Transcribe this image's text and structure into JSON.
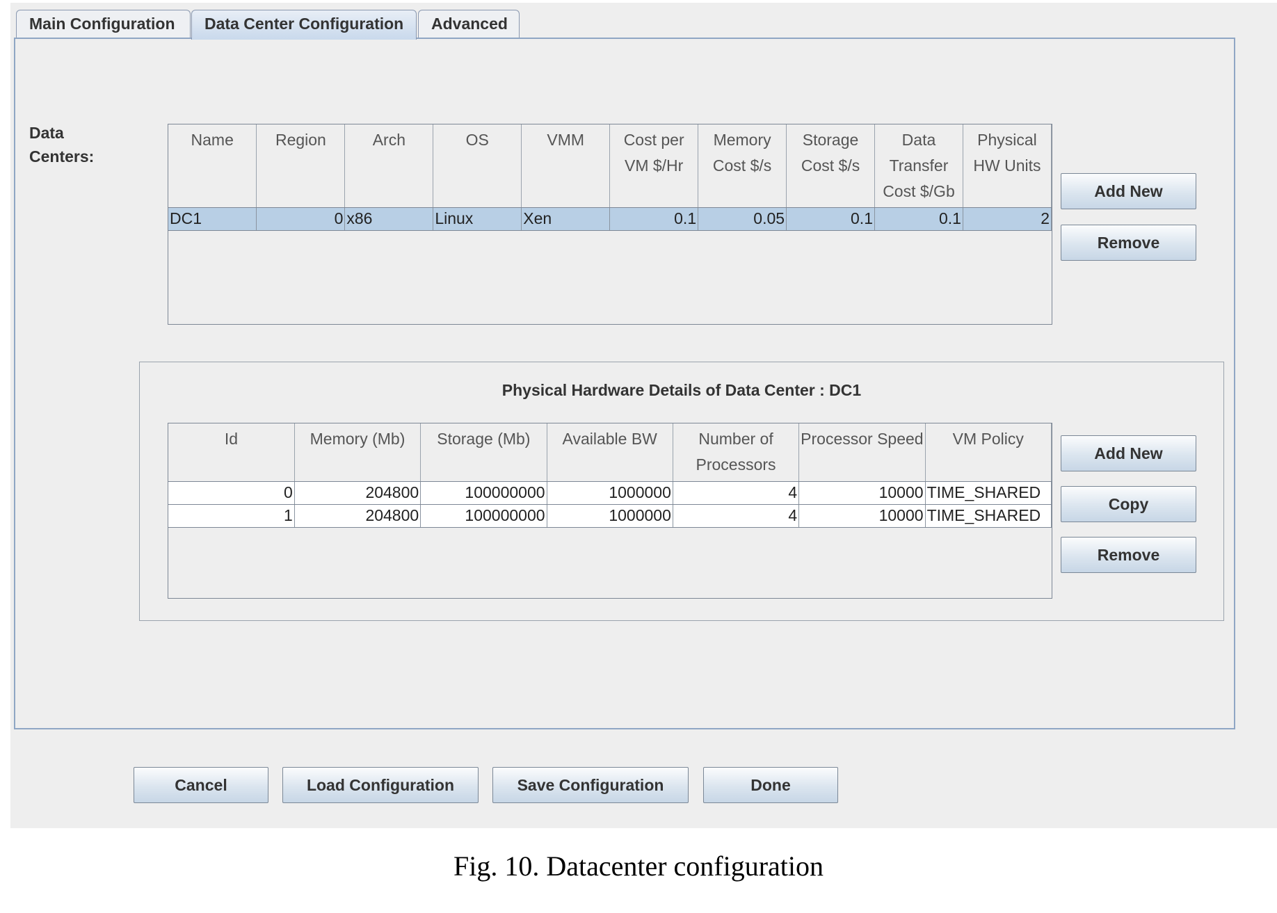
{
  "tabs": [
    {
      "label": "Main Configuration"
    },
    {
      "label": "Data Center Configuration",
      "active": true
    },
    {
      "label": "Advanced"
    }
  ],
  "datacenters": {
    "label": "Data Centers:",
    "columns": [
      "Name",
      "Region",
      "Arch",
      "OS",
      "VMM",
      "Cost per VM $/Hr",
      "Memory Cost $/s",
      "Storage Cost $/s",
      "Data Transfer Cost $/Gb",
      "Physical HW Units"
    ],
    "rows": [
      [
        "DC1",
        "0",
        "x86",
        "Linux",
        "Xen",
        "0.1",
        "0.05",
        "0.1",
        "0.1",
        "2"
      ]
    ],
    "add_label": "Add New",
    "remove_label": "Remove"
  },
  "hardware": {
    "title": "Physical Hardware Details of Data Center : DC1",
    "columns": [
      "Id",
      "Memory (Mb)",
      "Storage (Mb)",
      "Available BW",
      "Number of Processors",
      "Processor Speed",
      "VM Policy"
    ],
    "rows": [
      [
        "0",
        "204800",
        "100000000",
        "1000000",
        "4",
        "10000",
        "TIME_SHARED"
      ],
      [
        "1",
        "204800",
        "100000000",
        "1000000",
        "4",
        "10000",
        "TIME_SHARED"
      ]
    ],
    "add_label": "Add New",
    "copy_label": "Copy",
    "remove_label": "Remove"
  },
  "footer": {
    "cancel": "Cancel",
    "load": "Load Configuration",
    "save": "Save Configuration",
    "done": "Done"
  },
  "caption": "Fig.  10. Datacenter configuration",
  "colors": {
    "selected_row": "#b8cfe5",
    "panel_border": "#8fa6c4",
    "background": "#eeeeee"
  }
}
